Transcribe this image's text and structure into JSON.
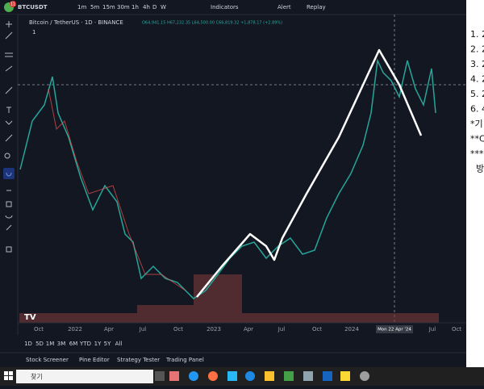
{
  "toolbar": {
    "badge": "11",
    "symbol": "BTCUSDT",
    "intervals": [
      "1m",
      "5m",
      "15m",
      "30m",
      "1h",
      "4h",
      "D",
      "W"
    ],
    "indicators": "Indicators",
    "alert": "Alert",
    "replay": "Replay"
  },
  "legend": {
    "title": "Bitcoin / TetherUS · 1D · BINANCE",
    "ohlc": "O64,941.15 H67,232.35 L64,500.00 C66,819.32 +1,878.17 (+2.89%)",
    "count": "1"
  },
  "x_axis": {
    "labels": [
      "Oct",
      "2022",
      "Apr",
      "Jul",
      "Oct",
      "2023",
      "Apr",
      "Jul",
      "Oct",
      "2024",
      "Jul",
      "Oct"
    ],
    "crosshair_label": "Mon 22 Apr '24"
  },
  "ranges": [
    "1D",
    "5D",
    "1M",
    "3M",
    "6M",
    "YTD",
    "1Y",
    "5Y",
    "All"
  ],
  "tabs": [
    "Stock Screener",
    "Pine Editor",
    "Strategy Tester",
    "Trading Panel"
  ],
  "side_panel": {
    "lines": [
      "1. 2",
      "2. 2",
      "3. 2",
      "4. 2",
      "5. 2",
      "6. 4",
      "*기",
      "**C",
      "***",
      "방"
    ]
  },
  "taskbar": {
    "search": "찾기"
  }
}
